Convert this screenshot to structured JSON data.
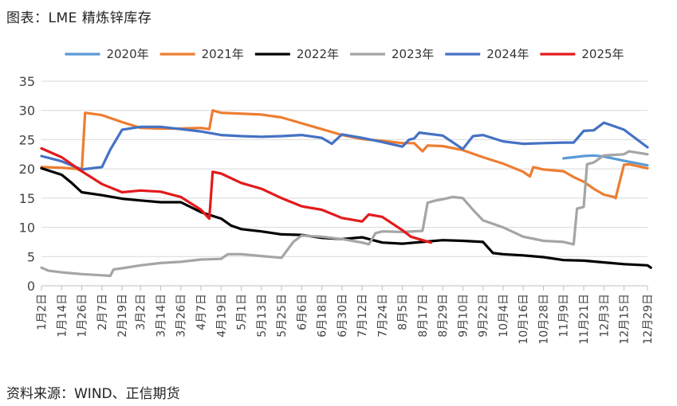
{
  "figure": {
    "title": "图表：LME 精炼锌库存",
    "source": "资料来源：WIND、正信期货"
  },
  "chart_data": {
    "type": "line",
    "title": "图表：LME 精炼锌库存",
    "xlabel": "",
    "ylabel": "",
    "ylim": [
      0,
      35
    ],
    "yticks": [
      0,
      5,
      10,
      15,
      20,
      25,
      30,
      35
    ],
    "grid": true,
    "legend_position": "top",
    "xlim": [
      "1月2日",
      "12月29日"
    ],
    "x_tick_labels": [
      "1月2日",
      "1月14日",
      "1月26日",
      "2月7日",
      "2月19日",
      "3月2日",
      "3月14日",
      "3月26日",
      "4月7日",
      "4月19日",
      "5月1日",
      "5月13日",
      "5月25日",
      "6月6日",
      "6月18日",
      "6月30日",
      "7月12日",
      "7月24日",
      "8月5日",
      "8月17日",
      "8月29日",
      "9月10日",
      "9月22日",
      "10月4日",
      "10月16日",
      "10月28日",
      "11月9日",
      "11月21日",
      "12月3日",
      "12月15日",
      "12月29日"
    ],
    "series": [
      {
        "name": "2020年",
        "color": "#5B9BD5",
        "points": [
          [
            "11月9日",
            21.8
          ],
          [
            "11月15日",
            22.0
          ],
          [
            "11月21日",
            22.2
          ],
          [
            "11月27日",
            22.3
          ],
          [
            "12月3日",
            22.1
          ],
          [
            "12月15日",
            21.4
          ],
          [
            "12月29日",
            20.6
          ]
        ]
      },
      {
        "name": "2021年",
        "color": "#ED7D31",
        "points": [
          [
            "1月2日",
            20.3
          ],
          [
            "1月14日",
            20.2
          ],
          [
            "1月23日",
            20.0
          ],
          [
            "1月26日",
            19.6
          ],
          [
            "1月28日",
            29.6
          ],
          [
            "2月7日",
            29.2
          ],
          [
            "2月19日",
            28.0
          ],
          [
            "3月2日",
            27.0
          ],
          [
            "3月14日",
            26.9
          ],
          [
            "3月26日",
            26.9
          ],
          [
            "4月7日",
            27.0
          ],
          [
            "4月12日",
            26.8
          ],
          [
            "4月14日",
            30.0
          ],
          [
            "4月19日",
            29.6
          ],
          [
            "5月13日",
            29.3
          ],
          [
            "5月25日",
            28.8
          ],
          [
            "6月6日",
            27.8
          ],
          [
            "6月18日",
            26.8
          ],
          [
            "6月30日",
            25.8
          ],
          [
            "7月12日",
            25.1
          ],
          [
            "7月24日",
            24.8
          ],
          [
            "8月5日",
            24.4
          ],
          [
            "8月12日",
            24.4
          ],
          [
            "8月17日",
            23.0
          ],
          [
            "8月20日",
            24.0
          ],
          [
            "8月29日",
            23.9
          ],
          [
            "9月10日",
            23.2
          ],
          [
            "9月22日",
            22.0
          ],
          [
            "10月4日",
            20.9
          ],
          [
            "10月16日",
            19.5
          ],
          [
            "10月20日",
            18.7
          ],
          [
            "10月22日",
            20.3
          ],
          [
            "10月28日",
            19.9
          ],
          [
            "11月9日",
            19.6
          ],
          [
            "11月15日",
            18.6
          ],
          [
            "11月21日",
            17.8
          ],
          [
            "11月27日",
            16.6
          ],
          [
            "12月3日",
            15.6
          ],
          [
            "12月9日",
            15.2
          ],
          [
            "12月10日",
            15.0
          ],
          [
            "12月15日",
            20.7
          ],
          [
            "12月18日",
            20.8
          ],
          [
            "12月29日",
            20.1
          ]
        ]
      },
      {
        "name": "2022年",
        "color": "#000000",
        "points": [
          [
            "1月2日",
            20.1
          ],
          [
            "1月14日",
            19.0
          ],
          [
            "1月20日",
            17.6
          ],
          [
            "1月26日",
            16.0
          ],
          [
            "2月7日",
            15.5
          ],
          [
            "2月19日",
            14.9
          ],
          [
            "3月2日",
            14.6
          ],
          [
            "3月14日",
            14.3
          ],
          [
            "3月26日",
            14.3
          ],
          [
            "4月7日",
            12.6
          ],
          [
            "4月19日",
            11.5
          ],
          [
            "4月25日",
            10.3
          ],
          [
            "5月1日",
            9.7
          ],
          [
            "5月13日",
            9.3
          ],
          [
            "5月25日",
            8.8
          ],
          [
            "6月6日",
            8.7
          ],
          [
            "6月18日",
            8.2
          ],
          [
            "6月30日",
            8.0
          ],
          [
            "7月12日",
            8.3
          ],
          [
            "7月24日",
            7.4
          ],
          [
            "8月5日",
            7.2
          ],
          [
            "8月17日",
            7.5
          ],
          [
            "8月29日",
            7.8
          ],
          [
            "9月10日",
            7.7
          ],
          [
            "9月22日",
            7.5
          ],
          [
            "9月28日",
            5.6
          ],
          [
            "10月4日",
            5.4
          ],
          [
            "10月16日",
            5.2
          ],
          [
            "10月28日",
            4.9
          ],
          [
            "11月9日",
            4.4
          ],
          [
            "11月21日",
            4.3
          ],
          [
            "12月3日",
            4.0
          ],
          [
            "12月15日",
            3.7
          ],
          [
            "12月29日",
            3.5
          ],
          [
            "12月31日",
            3.1
          ]
        ]
      },
      {
        "name": "2023年",
        "color": "#A5A5A5",
        "points": [
          [
            "1月2日",
            3.1
          ],
          [
            "1月6日",
            2.6
          ],
          [
            "1月14日",
            2.3
          ],
          [
            "1月26日",
            2.0
          ],
          [
            "2月7日",
            1.8
          ],
          [
            "2月12日",
            1.7
          ],
          [
            "2月14日",
            2.8
          ],
          [
            "2月19日",
            3.0
          ],
          [
            "3月2日",
            3.5
          ],
          [
            "3月14日",
            3.9
          ],
          [
            "3月26日",
            4.1
          ],
          [
            "4月7日",
            4.5
          ],
          [
            "4月19日",
            4.6
          ],
          [
            "4月23日",
            5.4
          ],
          [
            "5月1日",
            5.4
          ],
          [
            "5月13日",
            5.1
          ],
          [
            "5月25日",
            4.8
          ],
          [
            "6月1日",
            7.5
          ],
          [
            "6月6日",
            8.6
          ],
          [
            "6月18日",
            8.4
          ],
          [
            "6月30日",
            8.0
          ],
          [
            "7月12日",
            7.4
          ],
          [
            "7月16日",
            7.1
          ],
          [
            "7月20日",
            9.0
          ],
          [
            "7月24日",
            9.3
          ],
          [
            "8月5日",
            9.2
          ],
          [
            "8月17日",
            9.4
          ],
          [
            "8月20日",
            14.2
          ],
          [
            "8月25日",
            14.6
          ],
          [
            "8月29日",
            14.8
          ],
          [
            "9月4日",
            15.2
          ],
          [
            "9月10日",
            15.0
          ],
          [
            "9月16日",
            13.0
          ],
          [
            "9月22日",
            11.2
          ],
          [
            "10月4日",
            10.0
          ],
          [
            "10月16日",
            8.4
          ],
          [
            "10月28日",
            7.7
          ],
          [
            "11月9日",
            7.5
          ],
          [
            "11月15日",
            7.1
          ],
          [
            "11月17日",
            13.2
          ],
          [
            "11月21日",
            13.5
          ],
          [
            "11月23日",
            20.8
          ],
          [
            "11月27日",
            21.1
          ],
          [
            "12月3日",
            22.3
          ],
          [
            "12月15日",
            22.5
          ],
          [
            "12月18日",
            23.0
          ],
          [
            "12月29日",
            22.5
          ]
        ]
      },
      {
        "name": "2024年",
        "color": "#4472C4",
        "points": [
          [
            "1月2日",
            22.2
          ],
          [
            "1月14日",
            21.3
          ],
          [
            "1月26日",
            19.9
          ],
          [
            "2月7日",
            20.3
          ],
          [
            "2月12日",
            23.3
          ],
          [
            "2月19日",
            26.7
          ],
          [
            "3月2日",
            27.2
          ],
          [
            "3月14日",
            27.2
          ],
          [
            "3月26日",
            26.8
          ],
          [
            "4月7日",
            26.4
          ],
          [
            "4月19日",
            25.8
          ],
          [
            "5月1日",
            25.6
          ],
          [
            "5月13日",
            25.5
          ],
          [
            "5月25日",
            25.6
          ],
          [
            "6月6日",
            25.8
          ],
          [
            "6月18日",
            25.3
          ],
          [
            "6月24日",
            24.3
          ],
          [
            "6月30日",
            25.9
          ],
          [
            "7月12日",
            25.3
          ],
          [
            "7月24日",
            24.6
          ],
          [
            "8月5日",
            23.8
          ],
          [
            "8月9日",
            25.0
          ],
          [
            "8月12日",
            25.2
          ],
          [
            "8月15日",
            26.2
          ],
          [
            "8月29日",
            25.7
          ],
          [
            "9月10日",
            23.4
          ],
          [
            "9月16日",
            25.6
          ],
          [
            "9月22日",
            25.8
          ],
          [
            "10月4日",
            24.7
          ],
          [
            "10月16日",
            24.3
          ],
          [
            "10月28日",
            24.4
          ],
          [
            "11月9日",
            24.5
          ],
          [
            "11月15日",
            24.5
          ],
          [
            "11月21日",
            26.5
          ],
          [
            "11月27日",
            26.6
          ],
          [
            "12月3日",
            27.9
          ],
          [
            "12月15日",
            26.7
          ],
          [
            "12月22日",
            25.2
          ],
          [
            "12月29日",
            23.7
          ]
        ]
      },
      {
        "name": "2025年",
        "color": "#E31A1C",
        "points": [
          [
            "1月2日",
            23.5
          ],
          [
            "1月14日",
            22.0
          ],
          [
            "1月26日",
            19.6
          ],
          [
            "2月7日",
            17.4
          ],
          [
            "2月19日",
            16.0
          ],
          [
            "3月2日",
            16.3
          ],
          [
            "3月14日",
            16.1
          ],
          [
            "3月26日",
            15.2
          ],
          [
            "4月7日",
            13.0
          ],
          [
            "4月12日",
            11.5
          ],
          [
            "4月14日",
            19.5
          ],
          [
            "4月19日",
            19.2
          ],
          [
            "5月1日",
            17.6
          ],
          [
            "5月13日",
            16.6
          ],
          [
            "5月25日",
            15.0
          ],
          [
            "6月6日",
            13.6
          ],
          [
            "6月18日",
            13.0
          ],
          [
            "6月30日",
            11.6
          ],
          [
            "7月12日",
            11.0
          ],
          [
            "7月16日",
            12.2
          ],
          [
            "7月24日",
            11.8
          ],
          [
            "8月5日",
            9.5
          ],
          [
            "8月10日",
            8.4
          ],
          [
            "8月17日",
            7.8
          ],
          [
            "8月22日",
            7.4
          ]
        ]
      }
    ]
  }
}
